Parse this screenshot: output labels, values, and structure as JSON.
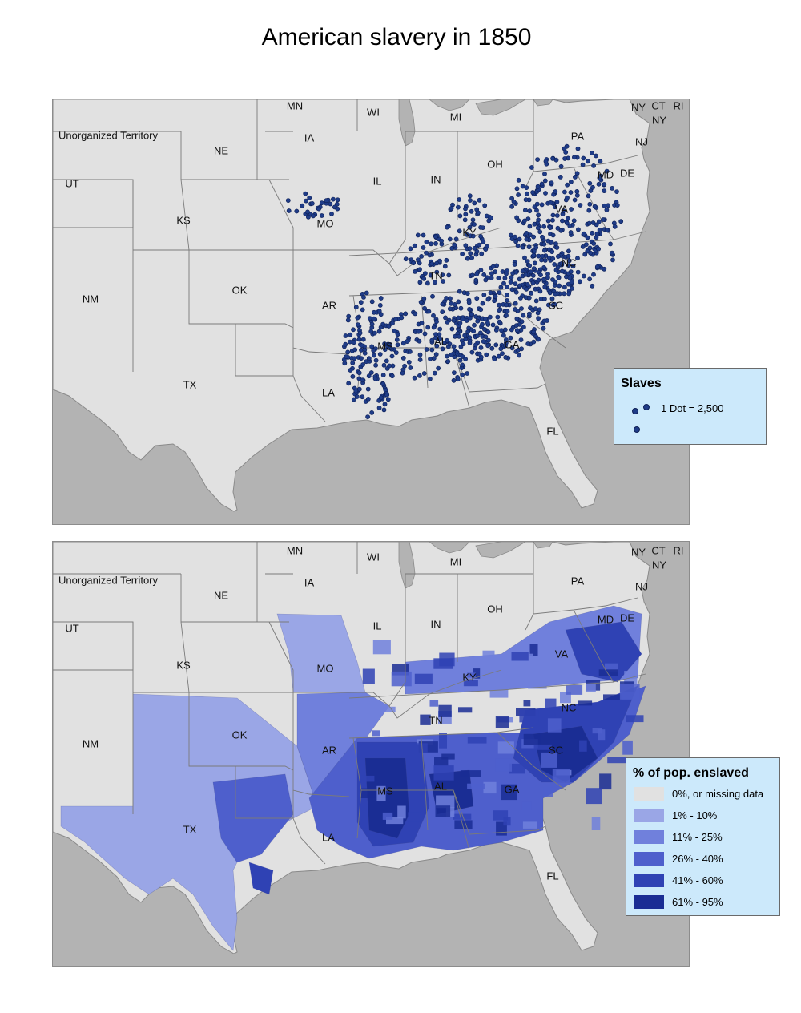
{
  "title": "American slavery in 1850",
  "state_labels": [
    "MN",
    "WI",
    "MI",
    "NY",
    "CT",
    "RI",
    "NY",
    "IA",
    "NE",
    "Unorganized Territory",
    "UT",
    "IL",
    "IN",
    "OH",
    "PA",
    "NJ",
    "MD",
    "DE",
    "KS",
    "MO",
    "KY",
    "VA",
    "NC",
    "TN",
    "OK",
    "AR",
    "NM",
    "SC",
    "AL",
    "GA",
    "MS",
    "LA",
    "TX",
    "FL"
  ],
  "dot_legend": {
    "title": "Slaves",
    "text": "1 Dot = 2,500"
  },
  "choropleth_legend": {
    "title": "% of pop. enslaved",
    "classes": [
      {
        "label": "0%, or missing data",
        "color": "#e1e1e1"
      },
      {
        "label": "1% - 10%",
        "color": "#9aa6e6"
      },
      {
        "label": "11% - 25%",
        "color": "#7080dc"
      },
      {
        "label": "26% - 40%",
        "color": "#4e5fcc"
      },
      {
        "label": "41% - 60%",
        "color": "#2f42b4"
      },
      {
        "label": "61% - 95%",
        "color": "#1a2d94"
      }
    ]
  },
  "colors": {
    "land": "#e1e1e1",
    "water": "#b3b3b3",
    "dot": "#1f3c88"
  }
}
